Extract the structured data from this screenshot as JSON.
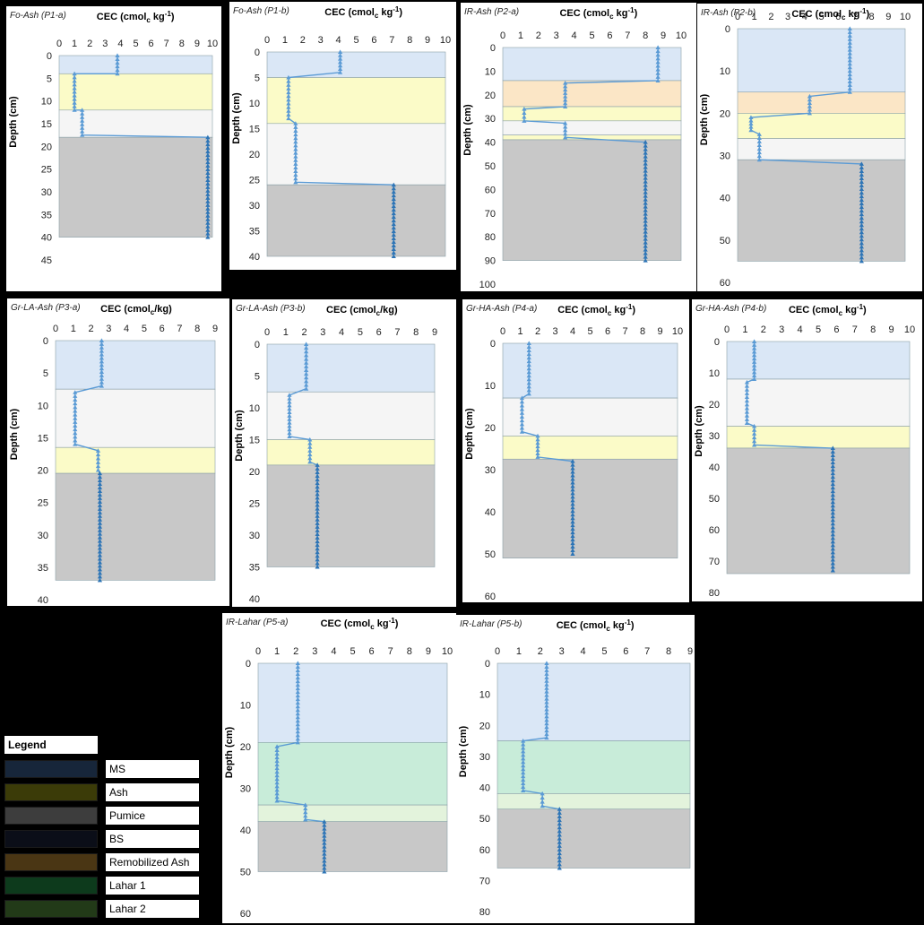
{
  "colors": {
    "MS": "#dae7f6",
    "Ash": "#fbfbc8",
    "Pumice": "#f5f5f5",
    "BS": "#c8c8c8",
    "Remobilized Ash": "#fbe6c6",
    "Lahar 1": "#c8ecd9",
    "Lahar 2": "#e3f3dc",
    "line": "#5b9bd5",
    "line_dark": "#2e75b6"
  },
  "legend": {
    "title": "Legend",
    "items": [
      {
        "label": "MS",
        "color": "#17263a"
      },
      {
        "label": "Ash",
        "color": "#3b3b08"
      },
      {
        "label": "Pumice",
        "color": "#3d3d3d"
      },
      {
        "label": "BS",
        "color": "#0b0e18"
      },
      {
        "label": "Remobilized Ash",
        "color": "#4a3614"
      },
      {
        "label": "Lahar 1",
        "color": "#0d3a1c"
      },
      {
        "label": "Lahar 2",
        "color": "#223a18"
      }
    ]
  },
  "axis_labels": {
    "x_main": "CEC (cmol",
    "x_sub": "c",
    "x_unit_kg": " kg",
    "x_sup": "-1",
    "x_slash_kg": "/kg",
    "y": "Depth (cm)"
  },
  "chart_data": [
    {
      "type": "line",
      "title": "Fo-Ash (P1-a)",
      "xlim": [
        0,
        10
      ],
      "xticks": [
        0,
        1,
        2,
        3,
        4,
        5,
        6,
        7,
        8,
        9,
        10
      ],
      "ylim": [
        0,
        45
      ],
      "yticks": [
        0,
        5,
        10,
        15,
        20,
        25,
        30,
        35,
        40,
        45
      ],
      "ymax_box": 40,
      "unit": "kg-1",
      "layers": [
        {
          "top": 0,
          "bottom": 4,
          "name": "MS"
        },
        {
          "top": 4,
          "bottom": 12,
          "name": "Ash"
        },
        {
          "top": 12,
          "bottom": 18,
          "name": "Pumice"
        },
        {
          "top": 18,
          "bottom": 40,
          "name": "BS"
        }
      ],
      "segments": [
        {
          "top": 0,
          "bottom": 4,
          "value": 3.8
        },
        {
          "top": 4,
          "bottom": 12,
          "value": 1.0
        },
        {
          "top": 12,
          "bottom": 17.5,
          "value": 1.5
        },
        {
          "top": 18,
          "bottom": 40,
          "value": 9.7
        }
      ]
    },
    {
      "type": "line",
      "title": "Fo-Ash (P1-b)",
      "xlim": [
        0,
        10
      ],
      "xticks": [
        0,
        1,
        2,
        3,
        4,
        5,
        6,
        7,
        8,
        9,
        10
      ],
      "ylim": [
        0,
        40
      ],
      "yticks": [
        0,
        5,
        10,
        15,
        20,
        25,
        30,
        35,
        40
      ],
      "ymax_box": 40,
      "unit": "kg-1",
      "layers": [
        {
          "top": 0,
          "bottom": 5,
          "name": "MS"
        },
        {
          "top": 5,
          "bottom": 14,
          "name": "Ash"
        },
        {
          "top": 14,
          "bottom": 26,
          "name": "Pumice"
        },
        {
          "top": 26,
          "bottom": 40,
          "name": "BS"
        }
      ],
      "segments": [
        {
          "top": 0,
          "bottom": 4,
          "value": 4.1
        },
        {
          "top": 5,
          "bottom": 13,
          "value": 1.2
        },
        {
          "top": 14,
          "bottom": 25.5,
          "value": 1.6
        },
        {
          "top": 26,
          "bottom": 40,
          "value": 7.1
        }
      ]
    },
    {
      "type": "line",
      "title": "IR-Ash (P2-a)",
      "xlim": [
        0,
        10
      ],
      "xticks": [
        0,
        1,
        2,
        3,
        4,
        5,
        6,
        7,
        8,
        9,
        10
      ],
      "ylim": [
        0,
        100
      ],
      "yticks": [
        0,
        10,
        20,
        30,
        40,
        50,
        60,
        70,
        80,
        90,
        100
      ],
      "ymax_box": 90,
      "unit": "kg-1",
      "layers": [
        {
          "top": 0,
          "bottom": 14,
          "name": "MS"
        },
        {
          "top": 14,
          "bottom": 25,
          "name": "Remobilized Ash"
        },
        {
          "top": 25,
          "bottom": 31,
          "name": "Ash"
        },
        {
          "top": 31,
          "bottom": 37,
          "name": "Pumice"
        },
        {
          "top": 37,
          "bottom": 39,
          "name": "Ash"
        },
        {
          "top": 39,
          "bottom": 90,
          "name": "BS"
        }
      ],
      "segments": [
        {
          "top": 0,
          "bottom": 14,
          "value": 8.7
        },
        {
          "top": 15,
          "bottom": 25,
          "value": 3.5
        },
        {
          "top": 26,
          "bottom": 31,
          "value": 1.2
        },
        {
          "top": 32,
          "bottom": 38,
          "value": 3.5
        },
        {
          "top": 40,
          "bottom": 90,
          "value": 8.0
        }
      ]
    },
    {
      "type": "line",
      "title": "IR-Ash (P2-b)",
      "xlim": [
        0,
        10
      ],
      "xticks": [
        0,
        1,
        2,
        3,
        4,
        5,
        6,
        7,
        8,
        9,
        10
      ],
      "ylim": [
        0,
        60
      ],
      "yticks": [
        0,
        10,
        20,
        30,
        40,
        50,
        60
      ],
      "ymax_box": 55,
      "unit": "kg-1",
      "layers": [
        {
          "top": 0,
          "bottom": 15,
          "name": "MS"
        },
        {
          "top": 15,
          "bottom": 20,
          "name": "Remobilized Ash"
        },
        {
          "top": 20,
          "bottom": 26,
          "name": "Ash"
        },
        {
          "top": 26,
          "bottom": 31,
          "name": "Pumice"
        },
        {
          "top": 31,
          "bottom": 55,
          "name": "BS"
        }
      ],
      "segments": [
        {
          "top": 0,
          "bottom": 15,
          "value": 6.7
        },
        {
          "top": 16,
          "bottom": 20,
          "value": 4.3
        },
        {
          "top": 21,
          "bottom": 24,
          "value": 0.8
        },
        {
          "top": 25,
          "bottom": 31,
          "value": 1.3
        },
        {
          "top": 32,
          "bottom": 55,
          "value": 7.4
        }
      ]
    },
    {
      "type": "line",
      "title": "Gr-LA-Ash (P3-a)",
      "xlim": [
        0,
        9
      ],
      "xticks": [
        0,
        1,
        2,
        3,
        4,
        5,
        6,
        7,
        8,
        9
      ],
      "ylim": [
        0,
        40
      ],
      "yticks": [
        0,
        5,
        10,
        15,
        20,
        25,
        30,
        35,
        40
      ],
      "ymax_box": 37,
      "unit": "/kg",
      "layers": [
        {
          "top": 0,
          "bottom": 7.5,
          "name": "MS"
        },
        {
          "top": 7.5,
          "bottom": 16.5,
          "name": "Pumice"
        },
        {
          "top": 16.5,
          "bottom": 20.5,
          "name": "Ash"
        },
        {
          "top": 20.5,
          "bottom": 37,
          "name": "BS"
        }
      ],
      "segments": [
        {
          "top": 0,
          "bottom": 7,
          "value": 2.6
        },
        {
          "top": 8,
          "bottom": 16,
          "value": 1.1
        },
        {
          "top": 17,
          "bottom": 20,
          "value": 2.4
        },
        {
          "top": 20.5,
          "bottom": 37,
          "value": 2.5
        }
      ]
    },
    {
      "type": "line",
      "title": "Gr-LA-Ash (P3-b)",
      "xlim": [
        0,
        9
      ],
      "xticks": [
        0,
        1,
        2,
        3,
        4,
        5,
        6,
        7,
        8,
        9
      ],
      "ylim": [
        0,
        40
      ],
      "yticks": [
        0,
        5,
        10,
        15,
        20,
        25,
        30,
        35,
        40
      ],
      "ymax_box": 35,
      "unit": "/kg",
      "layers": [
        {
          "top": 0,
          "bottom": 7.5,
          "name": "MS"
        },
        {
          "top": 7.5,
          "bottom": 15,
          "name": "Pumice"
        },
        {
          "top": 15,
          "bottom": 19,
          "name": "Ash"
        },
        {
          "top": 19,
          "bottom": 35,
          "name": "BS"
        }
      ],
      "segments": [
        {
          "top": 0,
          "bottom": 7,
          "value": 2.1
        },
        {
          "top": 8,
          "bottom": 14.5,
          "value": 1.2
        },
        {
          "top": 15,
          "bottom": 18.5,
          "value": 2.3
        },
        {
          "top": 19,
          "bottom": 35,
          "value": 2.7
        }
      ]
    },
    {
      "type": "line",
      "title": "Gr-HA-Ash (P4-a)",
      "xlim": [
        0,
        10
      ],
      "xticks": [
        0,
        1,
        2,
        3,
        4,
        5,
        6,
        7,
        8,
        9,
        10
      ],
      "ylim": [
        0,
        60
      ],
      "yticks": [
        0,
        10,
        20,
        30,
        40,
        50,
        60
      ],
      "ymax_box": 51,
      "unit": "kg-1",
      "layers": [
        {
          "top": 0,
          "bottom": 13,
          "name": "MS"
        },
        {
          "top": 13,
          "bottom": 22,
          "name": "Pumice"
        },
        {
          "top": 22,
          "bottom": 27.5,
          "name": "Ash"
        },
        {
          "top": 27.5,
          "bottom": 51,
          "name": "BS"
        }
      ],
      "segments": [
        {
          "top": 0,
          "bottom": 12,
          "value": 1.5
        },
        {
          "top": 13,
          "bottom": 21,
          "value": 1.1
        },
        {
          "top": 22,
          "bottom": 27,
          "value": 2.0
        },
        {
          "top": 28,
          "bottom": 50,
          "value": 4.0
        }
      ]
    },
    {
      "type": "line",
      "title": "Gr-HA-Ash (P4-b)",
      "xlim": [
        0,
        10
      ],
      "xticks": [
        0,
        1,
        2,
        3,
        4,
        5,
        6,
        7,
        8,
        9,
        10
      ],
      "ylim": [
        0,
        80
      ],
      "yticks": [
        0,
        10,
        20,
        30,
        40,
        50,
        60,
        70,
        80
      ],
      "ymax_box": 74,
      "unit": "kg-1",
      "layers": [
        {
          "top": 0,
          "bottom": 12,
          "name": "MS"
        },
        {
          "top": 12,
          "bottom": 27,
          "name": "Pumice"
        },
        {
          "top": 27,
          "bottom": 34,
          "name": "Ash"
        },
        {
          "top": 34,
          "bottom": 74,
          "name": "BS"
        }
      ],
      "segments": [
        {
          "top": 0,
          "bottom": 12,
          "value": 1.5
        },
        {
          "top": 13,
          "bottom": 26,
          "value": 1.1
        },
        {
          "top": 27,
          "bottom": 33,
          "value": 1.5
        },
        {
          "top": 34,
          "bottom": 73,
          "value": 5.8
        }
      ]
    },
    {
      "type": "line",
      "title": "IR-Lahar (P5-a)",
      "xlim": [
        0,
        10
      ],
      "xticks": [
        0,
        1,
        2,
        3,
        4,
        5,
        6,
        7,
        8,
        9,
        10
      ],
      "ylim": [
        0,
        60
      ],
      "yticks": [
        0,
        10,
        20,
        30,
        40,
        50,
        60
      ],
      "ymax_box": 50,
      "unit": "kg-1",
      "layers": [
        {
          "top": 0,
          "bottom": 19,
          "name": "MS"
        },
        {
          "top": 19,
          "bottom": 34,
          "name": "Lahar 1"
        },
        {
          "top": 34,
          "bottom": 38,
          "name": "Lahar 2"
        },
        {
          "top": 38,
          "bottom": 50,
          "name": "BS"
        }
      ],
      "segments": [
        {
          "top": 0,
          "bottom": 19,
          "value": 2.1
        },
        {
          "top": 20,
          "bottom": 33,
          "value": 1.0
        },
        {
          "top": 34,
          "bottom": 37.5,
          "value": 2.5
        },
        {
          "top": 38,
          "bottom": 50,
          "value": 3.5
        }
      ]
    },
    {
      "type": "line",
      "title": "IR-Lahar (P5-b)",
      "xlim": [
        0,
        9
      ],
      "xticks": [
        0,
        1,
        2,
        3,
        4,
        5,
        6,
        7,
        8,
        9
      ],
      "ylim": [
        0,
        80
      ],
      "yticks": [
        0,
        10,
        20,
        30,
        40,
        50,
        60,
        70,
        80
      ],
      "ymax_box": 66,
      "unit": "kg-1",
      "layers": [
        {
          "top": 0,
          "bottom": 25,
          "name": "MS"
        },
        {
          "top": 25,
          "bottom": 42,
          "name": "Lahar 1"
        },
        {
          "top": 42,
          "bottom": 47,
          "name": "Lahar 2"
        },
        {
          "top": 47,
          "bottom": 66,
          "name": "BS"
        }
      ],
      "segments": [
        {
          "top": 0,
          "bottom": 24,
          "value": 2.3
        },
        {
          "top": 25,
          "bottom": 41,
          "value": 1.2
        },
        {
          "top": 42,
          "bottom": 46,
          "value": 2.1
        },
        {
          "top": 47,
          "bottom": 66,
          "value": 2.9
        }
      ]
    }
  ]
}
